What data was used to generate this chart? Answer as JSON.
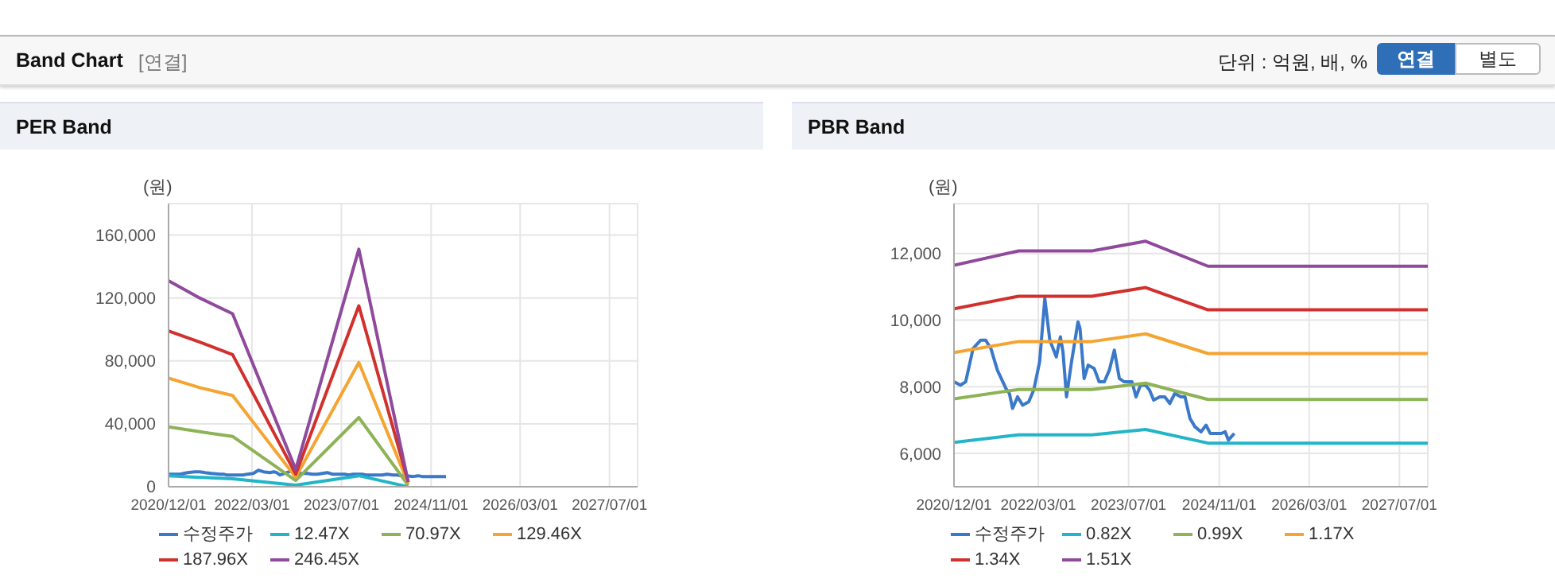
{
  "chart_data": [
    {
      "type": "other",
      "title": "Band Chart",
      "subtitle": "[연결]",
      "annotations": [
        "단위 : 억원, 배, %",
        "연결",
        "별도"
      ]
    },
    {
      "type": "line",
      "title": "PER Band",
      "ylabel": "(원)",
      "xlim": [
        "2020-12-01",
        "2027-12-01"
      ],
      "xticks": [
        {
          "value": "2020-12-01",
          "label": "2020/12/01"
        },
        {
          "value": "2022-03-01",
          "label": "2022/03/01"
        },
        {
          "value": "2023-07-01",
          "label": "2023/07/01"
        },
        {
          "value": "2024-11-01",
          "label": "2024/11/01"
        },
        {
          "value": "2026-03-01",
          "label": "2026/03/01"
        },
        {
          "value": "2027-07-01",
          "label": "2027/07/01"
        }
      ],
      "ylim": [
        0,
        180000
      ],
      "yticks": [
        0,
        {
          "value": 40000,
          "label": "40,000"
        },
        {
          "value": 80000,
          "label": "80,000"
        },
        {
          "value": 120000,
          "label": "120,000"
        },
        {
          "value": 160000,
          "label": "160,000"
        }
      ],
      "grid": true,
      "legend": "bottom",
      "marker": "none",
      "line_style": "solid",
      "series": [
        {
          "name": "수정주가",
          "color": "#3a78c9",
          "x": [
            "2020-12-01",
            "2021-01-05",
            "2021-02-02",
            "2021-03-14",
            "2021-04-24",
            "2021-05-21",
            "2021-06-18",
            "2021-07-23",
            "2021-09-07",
            "2021-09-26",
            "2021-10-13",
            "2021-11-09",
            "2021-12-06",
            "2022-01-08",
            "2022-02-04",
            "2022-03-08",
            "2022-04-05",
            "2022-05-02",
            "2022-06-06",
            "2022-06-28",
            "2022-07-12",
            "2022-07-31",
            "2022-08-27",
            "2022-10-01",
            "2022-10-12",
            "2022-11-03",
            "2022-11-25",
            "2022-12-27",
            "2023-01-23",
            "2023-02-20",
            "2023-03-19",
            "2023-04-15",
            "2023-05-12",
            "2023-06-08",
            "2023-07-19",
            "2023-08-10",
            "2023-09-03",
            "2023-10-01",
            "2023-10-22",
            "2023-11-13",
            "2023-12-16",
            "2024-01-12",
            "2024-02-08",
            "2024-03-06",
            "2024-04-08",
            "2024-04-30",
            "2024-05-27",
            "2024-06-23",
            "2024-07-26",
            "2024-08-22",
            "2024-09-13",
            "2024-10-10",
            "2024-11-12",
            "2024-12-03",
            "2024-12-20",
            "2025-01-21"
          ],
          "values": [
            8000,
            8000,
            8000,
            9000,
            9500,
            9500,
            9000,
            8500,
            8000,
            8000,
            7500,
            7500,
            7500,
            7500,
            8000,
            8500,
            10500,
            9500,
            9000,
            9500,
            9000,
            7500,
            8500,
            10000,
            10000,
            8000,
            8500,
            8500,
            8000,
            8000,
            8500,
            9000,
            8000,
            8000,
            8000,
            7500,
            8000,
            8000,
            8000,
            7500,
            7500,
            7500,
            7500,
            8000,
            7500,
            7500,
            7000,
            7000,
            6500,
            7000,
            6500,
            6500,
            6500,
            6500,
            6500,
            6500
          ]
        },
        {
          "name": "12.47X",
          "color": "#22b5c8",
          "x": [
            "2020-12-01",
            "2021-05-20",
            "2021-11-15",
            "2022-10-25",
            "2023-10-04",
            "2024-06-29"
          ],
          "values": [
            7000,
            6000,
            5000,
            1000,
            7000,
            0
          ]
        },
        {
          "name": "70.97X",
          "color": "#8db356",
          "x": [
            "2020-12-01",
            "2021-05-20",
            "2021-11-15",
            "2022-10-25",
            "2023-10-04",
            "2024-06-29"
          ],
          "values": [
            38000,
            35000,
            32000,
            4000,
            44000,
            1000
          ]
        },
        {
          "name": "129.46X",
          "color": "#f5a431",
          "x": [
            "2020-12-01",
            "2021-05-20",
            "2021-11-15",
            "2022-10-25",
            "2023-10-04",
            "2024-06-29"
          ],
          "values": [
            69000,
            63000,
            58000,
            6000,
            79000,
            2000
          ]
        },
        {
          "name": "187.96X",
          "color": "#d0312d",
          "x": [
            "2020-12-01",
            "2021-05-20",
            "2021-11-15",
            "2022-10-25",
            "2023-10-04",
            "2024-06-29"
          ],
          "values": [
            99000,
            92000,
            84000,
            8000,
            115000,
            3000
          ]
        },
        {
          "name": "246.45X",
          "color": "#8f4a9c",
          "x": [
            "2020-12-01",
            "2021-05-20",
            "2021-11-15",
            "2022-10-25",
            "2023-10-04",
            "2024-06-29"
          ],
          "values": [
            131000,
            120000,
            110000,
            11000,
            151000,
            3000
          ]
        }
      ]
    },
    {
      "type": "line",
      "title": "PBR Band",
      "ylabel": "(원)",
      "xlim": [
        "2020-12-01",
        "2027-12-01"
      ],
      "xticks": [
        {
          "value": "2020-12-01",
          "label": "2020/12/01"
        },
        {
          "value": "2022-03-01",
          "label": "2022/03/01"
        },
        {
          "value": "2023-07-01",
          "label": "2023/07/01"
        },
        {
          "value": "2024-11-01",
          "label": "2024/11/01"
        },
        {
          "value": "2026-03-01",
          "label": "2026/03/01"
        },
        {
          "value": "2027-07-01",
          "label": "2027/07/01"
        }
      ],
      "ylim": [
        5000,
        13500
      ],
      "yticks": [
        {
          "value": 6000,
          "label": "6,000"
        },
        {
          "value": 8000,
          "label": "8,000"
        },
        {
          "value": 10000,
          "label": "10,000"
        },
        {
          "value": 12000,
          "label": "12,000"
        }
      ],
      "grid": true,
      "legend": "bottom",
      "marker": "none",
      "line_style": "solid",
      "series": [
        {
          "name": "수정주가",
          "color": "#3a78c9",
          "x": [
            "2020-12-01",
            "2021-01-05",
            "2021-02-02",
            "2021-03-14",
            "2021-04-24",
            "2021-05-21",
            "2021-06-18",
            "2021-07-23",
            "2021-09-07",
            "2021-09-26",
            "2021-10-13",
            "2021-11-09",
            "2021-12-06",
            "2022-01-08",
            "2022-02-04",
            "2022-03-08",
            "2022-04-05",
            "2022-05-02",
            "2022-06-06",
            "2022-06-28",
            "2022-07-12",
            "2022-07-31",
            "2022-08-27",
            "2022-10-01",
            "2022-10-12",
            "2022-11-03",
            "2022-11-25",
            "2022-12-27",
            "2023-01-23",
            "2023-02-20",
            "2023-03-19",
            "2023-04-15",
            "2023-05-12",
            "2023-06-08",
            "2023-07-19",
            "2023-08-10",
            "2023-09-03",
            "2023-10-01",
            "2023-10-22",
            "2023-11-13",
            "2023-12-16",
            "2024-01-12",
            "2024-02-08",
            "2024-03-06",
            "2024-04-08",
            "2024-04-30",
            "2024-05-27",
            "2024-06-23",
            "2024-07-26",
            "2024-08-22",
            "2024-09-13",
            "2024-10-10",
            "2024-11-12",
            "2024-12-03",
            "2024-12-20",
            "2025-01-21"
          ],
          "values": [
            8150,
            8050,
            8150,
            9150,
            9400,
            9400,
            9150,
            8500,
            7950,
            7800,
            7350,
            7700,
            7450,
            7550,
            7900,
            8750,
            10650,
            9400,
            8900,
            9500,
            9050,
            7700,
            8750,
            9950,
            9750,
            8250,
            8650,
            8550,
            8150,
            8150,
            8500,
            9100,
            8250,
            8150,
            8150,
            7700,
            8050,
            8050,
            7900,
            7600,
            7700,
            7700,
            7500,
            7800,
            7700,
            7700,
            7050,
            6800,
            6650,
            6850,
            6600,
            6600,
            6600,
            6650,
            6400,
            6600
          ]
        },
        {
          "name": "0.82X",
          "color": "#22b5c8",
          "x": [
            "2020-12-01",
            "2021-11-15",
            "2022-12-15",
            "2023-10-01",
            "2024-09-01",
            "2027-12-01"
          ],
          "values": [
            6330,
            6560,
            6560,
            6720,
            6310,
            6310
          ]
        },
        {
          "name": "0.99X",
          "color": "#8db356",
          "x": [
            "2020-12-01",
            "2021-11-15",
            "2022-12-15",
            "2023-10-01",
            "2024-09-01",
            "2027-12-01"
          ],
          "values": [
            7640,
            7920,
            7920,
            8110,
            7620,
            7620
          ]
        },
        {
          "name": "1.17X",
          "color": "#f5a431",
          "x": [
            "2020-12-01",
            "2021-11-15",
            "2022-12-15",
            "2023-10-01",
            "2024-09-01",
            "2027-12-01"
          ],
          "values": [
            9030,
            9360,
            9360,
            9590,
            9000,
            9000
          ]
        },
        {
          "name": "1.34X",
          "color": "#d0312d",
          "x": [
            "2020-12-01",
            "2021-11-15",
            "2022-12-15",
            "2023-10-01",
            "2024-09-01",
            "2027-12-01"
          ],
          "values": [
            10340,
            10720,
            10720,
            10980,
            10310,
            10310
          ]
        },
        {
          "name": "1.51X",
          "color": "#8f4a9c",
          "x": [
            "2020-12-01",
            "2021-11-15",
            "2022-12-15",
            "2023-10-01",
            "2024-09-01",
            "2027-12-01"
          ],
          "values": [
            11650,
            12080,
            12080,
            12370,
            11620,
            11620
          ]
        }
      ]
    }
  ]
}
